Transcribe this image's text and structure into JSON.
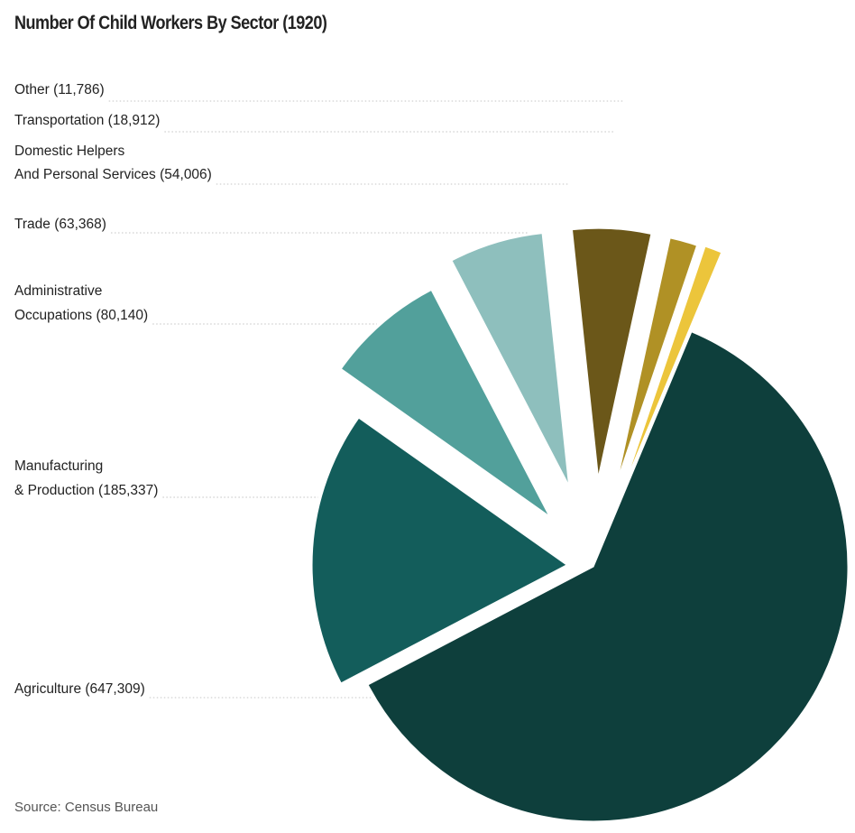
{
  "chart_data": {
    "type": "pie",
    "title": "Number Of Child Workers By Sector (1920)",
    "source": "Source: Census Bureau",
    "slices": [
      {
        "label_lines": [
          "Agriculture (647,309)"
        ],
        "value": 647309,
        "color": "#0e3f3c"
      },
      {
        "label_lines": [
          "Manufacturing",
          "& Production (185,337)"
        ],
        "value": 185337,
        "color": "#135d5b"
      },
      {
        "label_lines": [
          "Administrative",
          "Occupations (80,140)"
        ],
        "value": 80140,
        "color": "#52a09b"
      },
      {
        "label_lines": [
          "Trade (63,368)"
        ],
        "value": 63368,
        "color": "#8ebfbd"
      },
      {
        "label_lines": [
          "Domestic Helpers",
          "And Personal Services (54,006)"
        ],
        "value": 54006,
        "color": "#6b5719"
      },
      {
        "label_lines": [
          "Transportation (18,912)"
        ],
        "value": 18912,
        "color": "#b09125"
      },
      {
        "label_lines": [
          "Other (11,786)"
        ],
        "value": 11786,
        "color": "#ecc53b"
      }
    ]
  }
}
